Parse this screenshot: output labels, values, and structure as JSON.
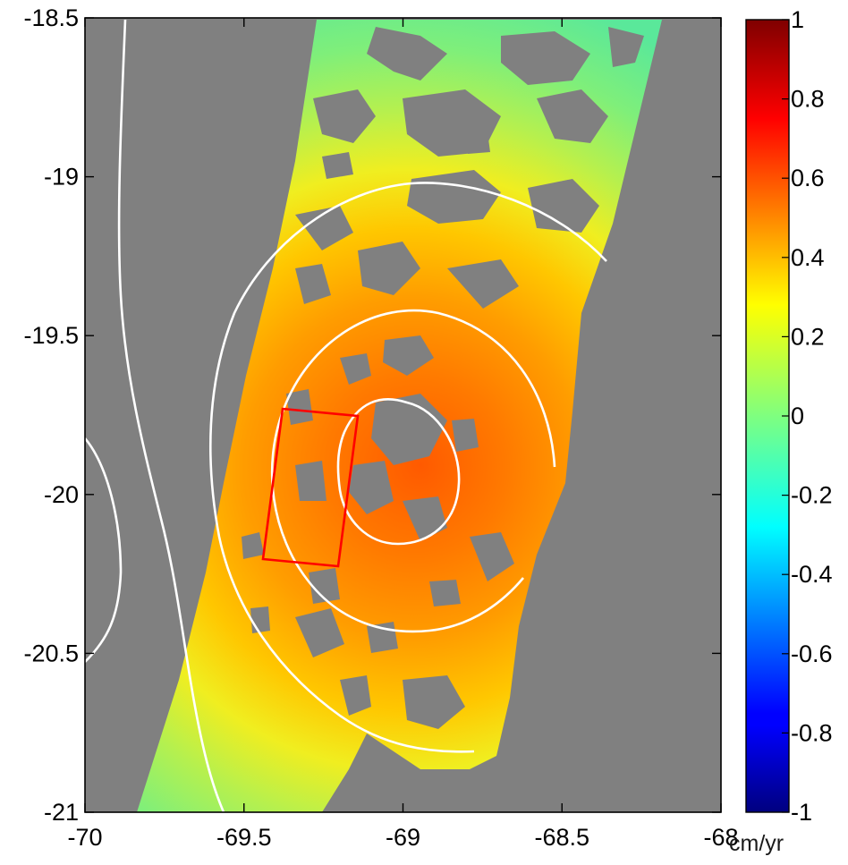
{
  "map": {
    "x_axis": {
      "range": [
        -70,
        -68
      ],
      "ticks": [
        -70,
        -69.5,
        -69,
        -68.5,
        -68
      ]
    },
    "y_axis": {
      "range": [
        -21,
        -18.5
      ],
      "ticks": [
        -18.5,
        -19,
        -19.5,
        -20,
        -20.5,
        -21
      ]
    },
    "no_data_color": "#808080",
    "contour_color": "#ffffff",
    "box_color": "#ff0000",
    "deformation_peak": {
      "lon": -68.95,
      "lat": -19.92,
      "value": 0.65
    },
    "contours_rings": [
      {
        "center": [
          -68.95,
          -19.92
        ],
        "rx": 0.38,
        "ry": 0.52
      },
      {
        "center": [
          -68.98,
          -19.95
        ],
        "rx": 0.58,
        "ry": 0.85
      },
      {
        "center": [
          -68.97,
          -19.95
        ],
        "rx": 0.8,
        "ry": 1.25
      }
    ],
    "highlight_box": [
      [
        -69.37,
        -19.73
      ],
      [
        -69.13,
        -19.75
      ],
      [
        -69.2,
        -20.22
      ],
      [
        -69.43,
        -20.2
      ]
    ]
  },
  "colorbar": {
    "range": [
      -1,
      1
    ],
    "ticks": [
      "1",
      "0.8",
      "0.6",
      "0.4",
      "0.2",
      "0",
      "-0.2",
      "-0.4",
      "-0.6",
      "-0.8",
      "-1"
    ],
    "unit": "cm/yr",
    "colormap": "jet"
  }
}
